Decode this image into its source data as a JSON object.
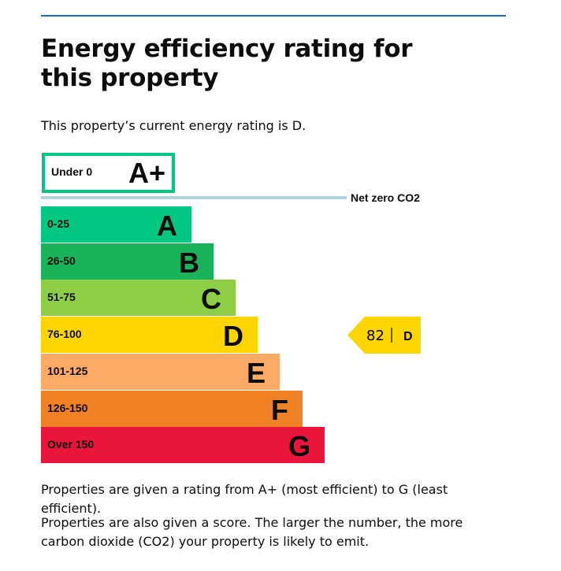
{
  "header": {
    "title": "Energy efficiency rating for this property"
  },
  "intro": "This property’s current energy rating is D.",
  "top_band": {
    "range": "Under 0",
    "letter": "A+"
  },
  "net_zero": "Net zero CO2",
  "bands": [
    {
      "range": "0-25",
      "letter": "A"
    },
    {
      "range": "26-50",
      "letter": "B"
    },
    {
      "range": "51-75",
      "letter": "C"
    },
    {
      "range": "76-100",
      "letter": "D"
    },
    {
      "range": "101-125",
      "letter": "E"
    },
    {
      "range": "126-150",
      "letter": "F"
    },
    {
      "range": "Over 150",
      "letter": "G"
    }
  ],
  "current": {
    "score": 82,
    "letter": "D"
  },
  "notes": [
    "Properties are given a rating from A+ (most efficient) to G (least efficient).",
    "Properties are also given a score. The larger the number, the more carbon dioxide (CO2) your property is likely to emit."
  ]
}
